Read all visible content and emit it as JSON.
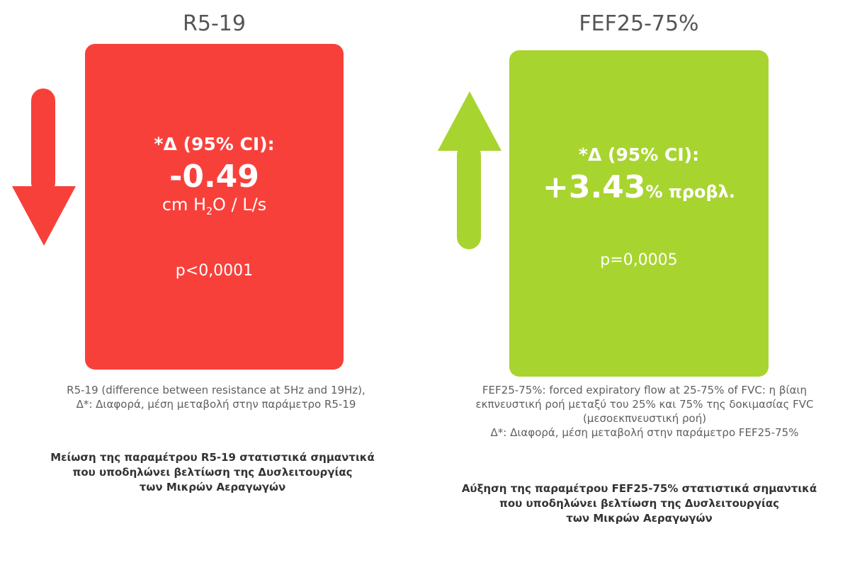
{
  "left": {
    "title": "R5-19",
    "color": "#f8403b",
    "delta_label": "*Δ (95% CI):",
    "value": "-0.49",
    "unit_prefix": "cm H",
    "unit_sub": "2",
    "unit_suffix": "O / L/s",
    "p_value": "p<0,0001",
    "arrow": "down-arrow-icon",
    "desc_line1": "R5-19 (difference between resistance at 5Hz and 19Hz),",
    "desc_line2": "Δ*: Διαφορά, μέση μεταβολή στην παράμετρο R5-19",
    "summary_line1": "Μείωση της παραμέτρου R5-19 στατιστικά σημαντικά",
    "summary_line2": "που υποδηλώνει βελτίωση της Δυσλειτουργίας",
    "summary_line3": "των Μικρών Αεραγωγών"
  },
  "right": {
    "title": "FEF25-75%",
    "color": "#a8d430",
    "delta_label": "*Δ (95% CI):",
    "value": "+3.43",
    "unit_suffix": "% προβλ.",
    "p_value": "p=0,0005",
    "arrow": "up-arrow-icon",
    "desc_line1": "FEF25-75%: forced expiratory flow at 25-75% of FVC: η βίαιη",
    "desc_line2": "εκπνευστική ροή μεταξύ του 25% και 75% της δοκιμασίας FVC",
    "desc_line3": "(μεσοεκπνευστική ροή)",
    "desc_line4": "Δ*: Διαφορά, μέση μεταβολή στην παράμετρο FEF25-75%",
    "summary_line1": "Αύξηση της παραμέτρου FEF25-75% στατιστικά σημαντικά",
    "summary_line2": "που υποδηλώνει βελτίωση της Δυσλειτουργίας",
    "summary_line3": "των Μικρών Αεραγωγών"
  }
}
